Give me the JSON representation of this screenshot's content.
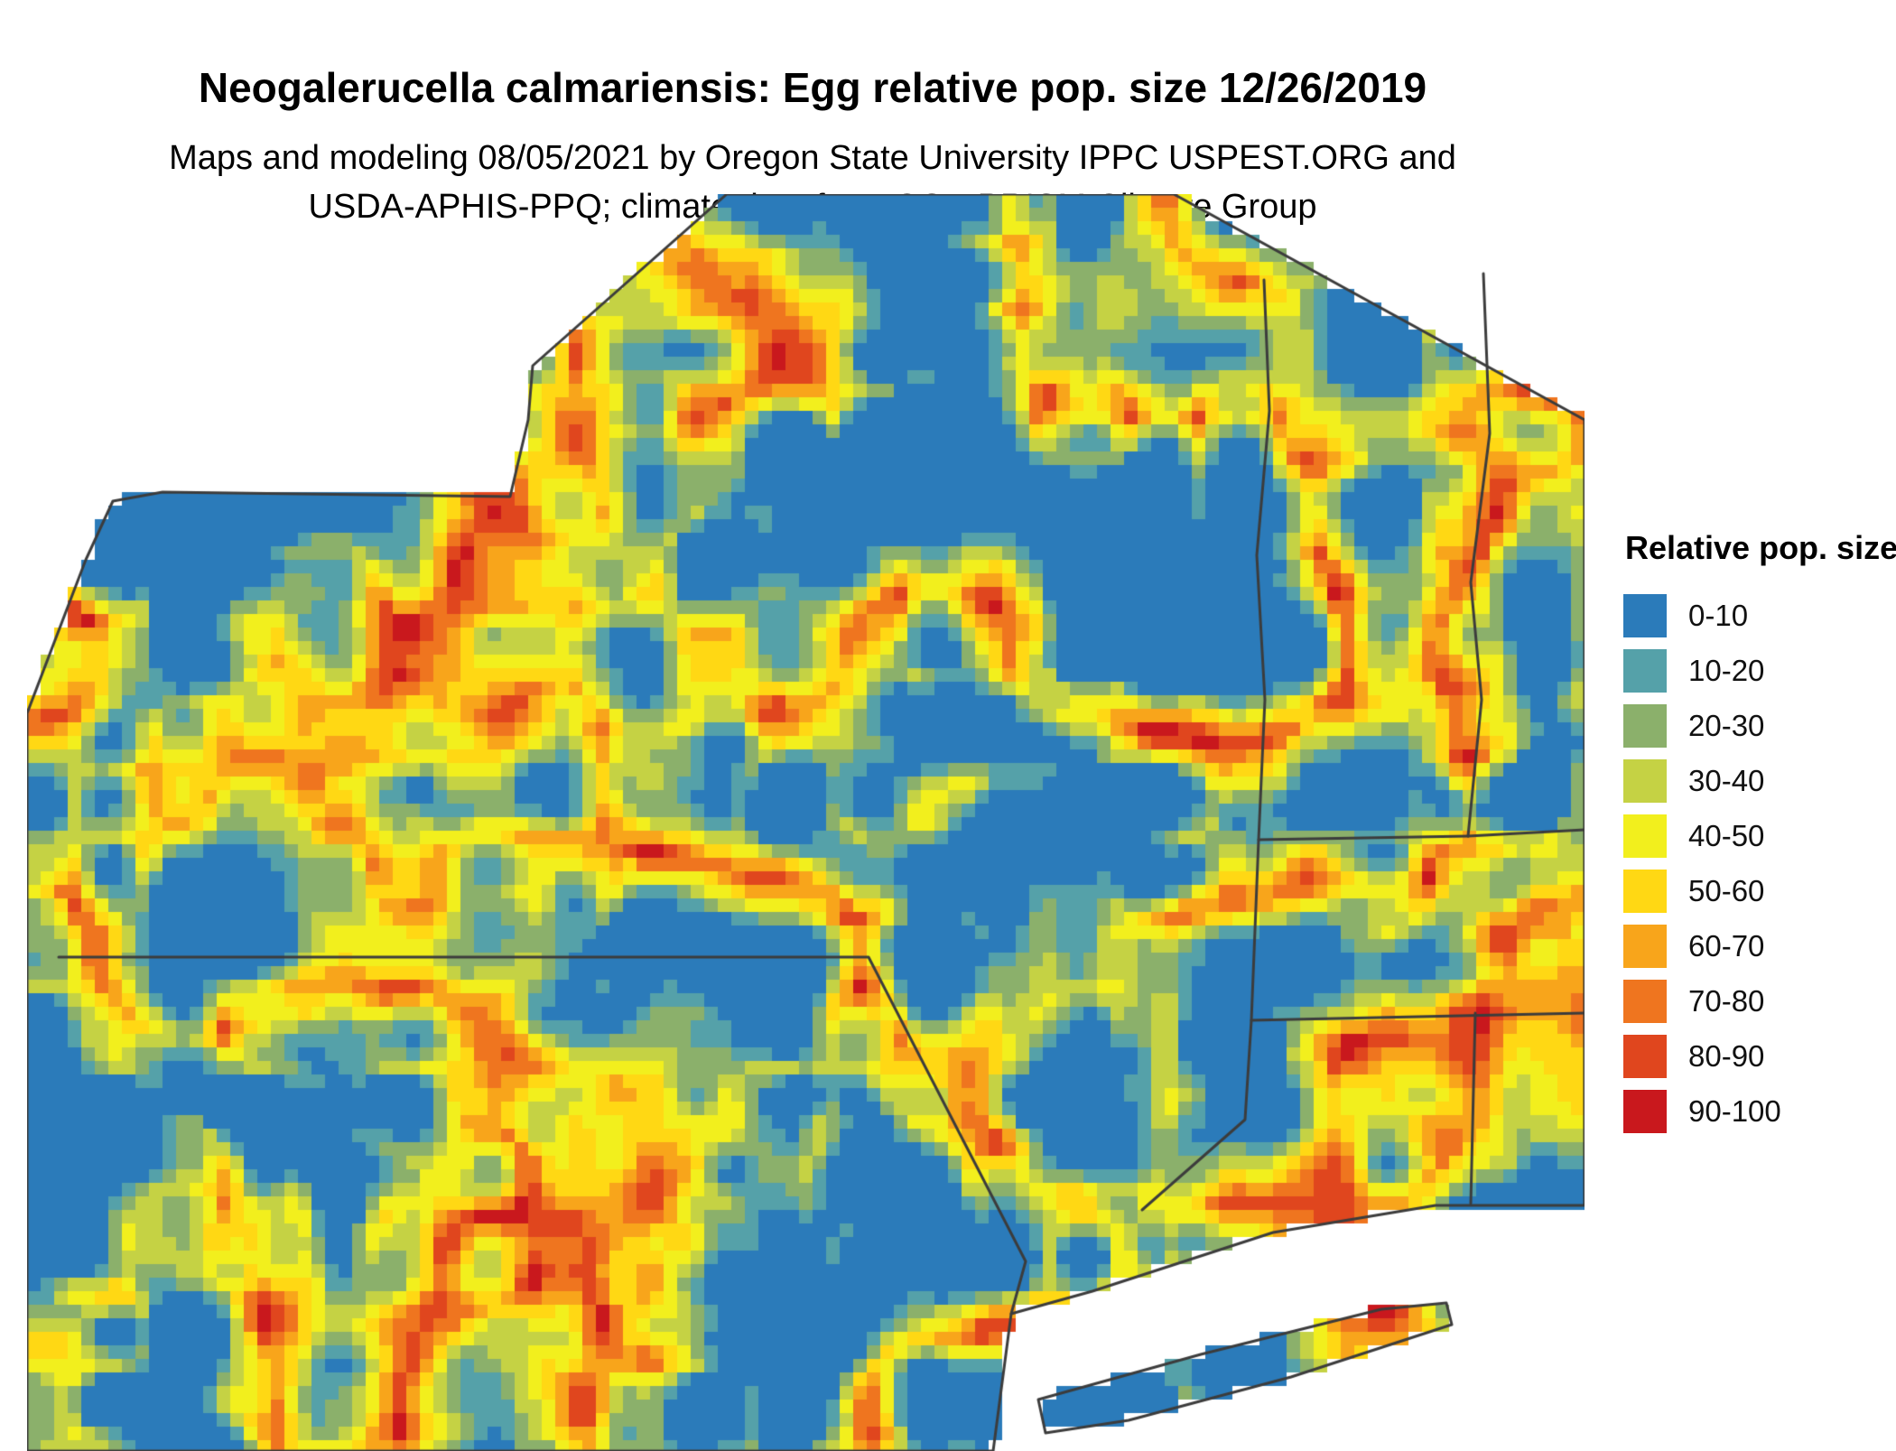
{
  "header": {
    "title": "Neogalerucella calmariensis: Egg relative pop. size 12/26/2019",
    "subtitle_line1": "Maps and modeling 08/05/2021 by Oregon State University IPPC USPEST.ORG and",
    "subtitle_line2": "USDA-APHIS-PPQ; climate data from OSU PRISM Climate Group"
  },
  "legend": {
    "title": "Relative pop. size",
    "items": [
      {
        "label": "0-10",
        "color": "#2B7BBA"
      },
      {
        "label": "10-20",
        "color": "#55A1A9"
      },
      {
        "label": "20-30",
        "color": "#8BB06B"
      },
      {
        "label": "30-40",
        "color": "#C5D244"
      },
      {
        "label": "40-50",
        "color": "#F2EF1D"
      },
      {
        "label": "50-60",
        "color": "#FFD814"
      },
      {
        "label": "60-70",
        "color": "#F8A51B"
      },
      {
        "label": "70-80",
        "color": "#EF751F"
      },
      {
        "label": "80-90",
        "color": "#E0461E"
      },
      {
        "label": "90-100",
        "color": "#C9181D"
      }
    ]
  },
  "map": {
    "region_outline_color": "#3C3C3C",
    "background": "#FFFFFF"
  }
}
